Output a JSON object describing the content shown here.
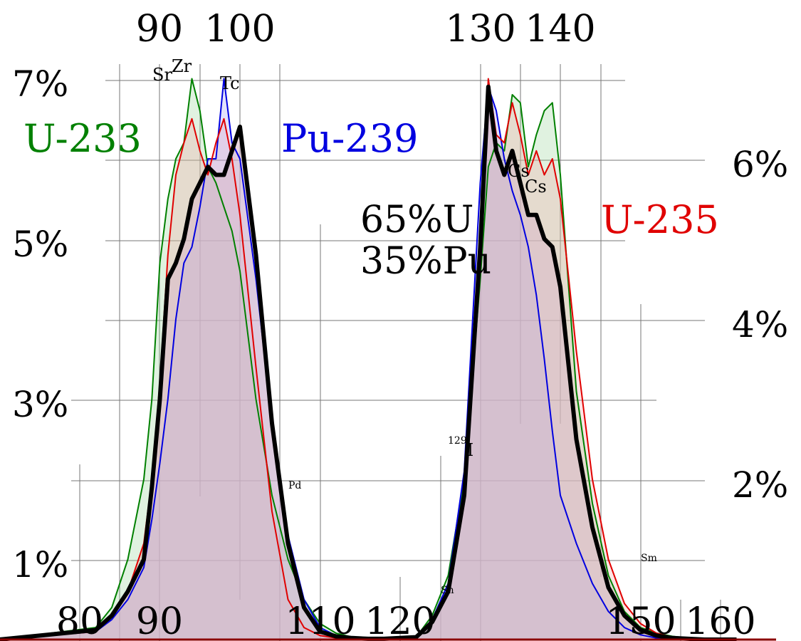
{
  "chart_data": {
    "type": "area",
    "x_ticks_top": [
      "90",
      "100",
      "130",
      "140"
    ],
    "x_ticks_bottom": [
      "80",
      "90",
      "110",
      "120",
      "150",
      "160"
    ],
    "y_ticks_left": [
      "7%",
      "5%",
      "3%",
      "1%"
    ],
    "y_ticks_right": [
      "6%",
      "4%",
      "2%"
    ],
    "mixture_label": [
      "65%U",
      "35%Pu"
    ],
    "element_labels": [
      {
        "text": "Sr",
        "x": 90,
        "y": 7.0
      },
      {
        "text": "Zr",
        "x": 93,
        "y": 7.1
      },
      {
        "text": "Tc",
        "x": 99,
        "y": 6.8
      },
      {
        "text": "Pd",
        "x": 106,
        "y": 1.9
      },
      {
        "text": "Sn",
        "x": 126,
        "y": 0.5
      },
      {
        "text": "129I",
        "x": 129,
        "y": 2.3
      },
      {
        "text": "Cs",
        "x": 134,
        "y": 5.9
      },
      {
        "text": "Cs",
        "x": 136,
        "y": 5.7
      },
      {
        "text": "Sm",
        "x": 151,
        "y": 0.9
      }
    ],
    "series": [
      {
        "name": "U-233",
        "color": "#008000",
        "x": [
          70,
          82,
          84,
          86,
          88,
          89,
          90,
          91,
          92,
          93,
          94,
          95,
          96,
          97,
          98,
          99,
          100,
          102,
          104,
          106,
          108,
          110,
          112,
          114,
          116,
          118,
          120,
          122,
          124,
          126,
          128,
          130,
          131,
          132,
          133,
          134,
          135,
          136,
          137,
          138,
          139,
          140,
          142,
          144,
          146,
          148,
          150,
          152,
          154,
          156,
          158,
          160,
          162
        ],
        "y": [
          0.0,
          0.15,
          0.4,
          1.0,
          2.0,
          3.0,
          4.7,
          5.5,
          6.0,
          6.2,
          7.0,
          6.6,
          5.9,
          5.7,
          5.4,
          5.1,
          4.6,
          3.0,
          1.8,
          1.0,
          0.5,
          0.2,
          0.08,
          0.03,
          0.02,
          0.02,
          0.02,
          0.03,
          0.3,
          0.8,
          2.0,
          4.5,
          5.9,
          6.2,
          6.1,
          6.8,
          6.7,
          5.9,
          6.3,
          6.6,
          6.7,
          5.8,
          3.1,
          1.7,
          0.8,
          0.35,
          0.15,
          0.08,
          0.04,
          0.02,
          0.01,
          0.0,
          0.0
        ]
      },
      {
        "name": "U-235",
        "color": "#e00000",
        "x": [
          70,
          82,
          84,
          86,
          88,
          89,
          90,
          91,
          92,
          93,
          94,
          95,
          96,
          97,
          98,
          99,
          100,
          102,
          104,
          106,
          108,
          110,
          112,
          114,
          116,
          118,
          120,
          122,
          124,
          126,
          128,
          130,
          131,
          132,
          133,
          134,
          135,
          136,
          137,
          138,
          139,
          140,
          142,
          144,
          146,
          148,
          150,
          152,
          154,
          156,
          158,
          160,
          162
        ],
        "y": [
          0.0,
          0.1,
          0.3,
          0.6,
          1.2,
          2.0,
          3.2,
          4.8,
          5.8,
          6.2,
          6.5,
          6.1,
          5.8,
          6.2,
          6.5,
          6.0,
          5.3,
          3.4,
          1.6,
          0.5,
          0.15,
          0.05,
          0.02,
          0.01,
          0.01,
          0.01,
          0.01,
          0.02,
          0.2,
          0.6,
          1.8,
          4.7,
          7.0,
          6.3,
          6.2,
          6.7,
          6.3,
          5.8,
          6.1,
          5.8,
          6.0,
          5.5,
          3.6,
          2.0,
          1.0,
          0.45,
          0.2,
          0.08,
          0.03,
          0.01,
          0.01,
          0.0,
          0.0
        ]
      },
      {
        "name": "Pu-239",
        "color": "#0000e0",
        "x": [
          70,
          82,
          84,
          86,
          88,
          89,
          90,
          91,
          92,
          93,
          94,
          95,
          96,
          97,
          98,
          99,
          100,
          102,
          104,
          106,
          108,
          110,
          112,
          114,
          116,
          118,
          120,
          122,
          124,
          126,
          128,
          130,
          131,
          132,
          133,
          134,
          135,
          136,
          137,
          138,
          139,
          140,
          142,
          144,
          146,
          148,
          150,
          152,
          154,
          156,
          158,
          160,
          162
        ],
        "y": [
          0.0,
          0.1,
          0.25,
          0.5,
          0.9,
          1.5,
          2.2,
          3.0,
          4.0,
          4.7,
          4.9,
          5.4,
          6.0,
          6.0,
          7.0,
          6.2,
          6.0,
          4.5,
          2.7,
          1.3,
          0.5,
          0.15,
          0.05,
          0.02,
          0.01,
          0.01,
          0.02,
          0.03,
          0.25,
          0.7,
          2.1,
          5.7,
          6.9,
          6.6,
          6.0,
          5.6,
          5.3,
          4.9,
          4.3,
          3.5,
          2.6,
          1.8,
          1.2,
          0.7,
          0.35,
          0.15,
          0.06,
          0.02,
          0.01,
          0.0,
          0.0,
          0.0,
          0.0
        ]
      },
      {
        "name": "",
        "color": "#000000",
        "x": [
          70,
          82,
          84,
          86,
          88,
          89,
          90,
          91,
          92,
          93,
          94,
          95,
          96,
          97,
          98,
          99,
          100,
          102,
          104,
          106,
          108,
          110,
          112,
          114,
          116,
          118,
          120,
          122,
          124,
          126,
          128,
          130,
          131,
          132,
          133,
          134,
          135,
          136,
          137,
          138,
          139,
          140,
          142,
          144,
          146,
          148,
          150,
          152,
          154,
          156,
          158,
          160,
          162
        ],
        "y": [
          0.0,
          0.12,
          0.3,
          0.6,
          1.0,
          1.9,
          3.0,
          4.5,
          4.7,
          5.0,
          5.5,
          5.7,
          5.9,
          5.8,
          5.8,
          6.1,
          6.4,
          4.8,
          2.7,
          1.2,
          0.4,
          0.1,
          0.04,
          0.02,
          0.01,
          0.01,
          0.02,
          0.03,
          0.22,
          0.6,
          1.8,
          4.9,
          6.9,
          6.1,
          5.8,
          6.1,
          5.7,
          5.3,
          5.3,
          5.0,
          4.9,
          4.4,
          2.5,
          1.4,
          0.65,
          0.3,
          0.12,
          0.05,
          0.02,
          0.01,
          0.0,
          0.0,
          0.0
        ]
      }
    ]
  }
}
